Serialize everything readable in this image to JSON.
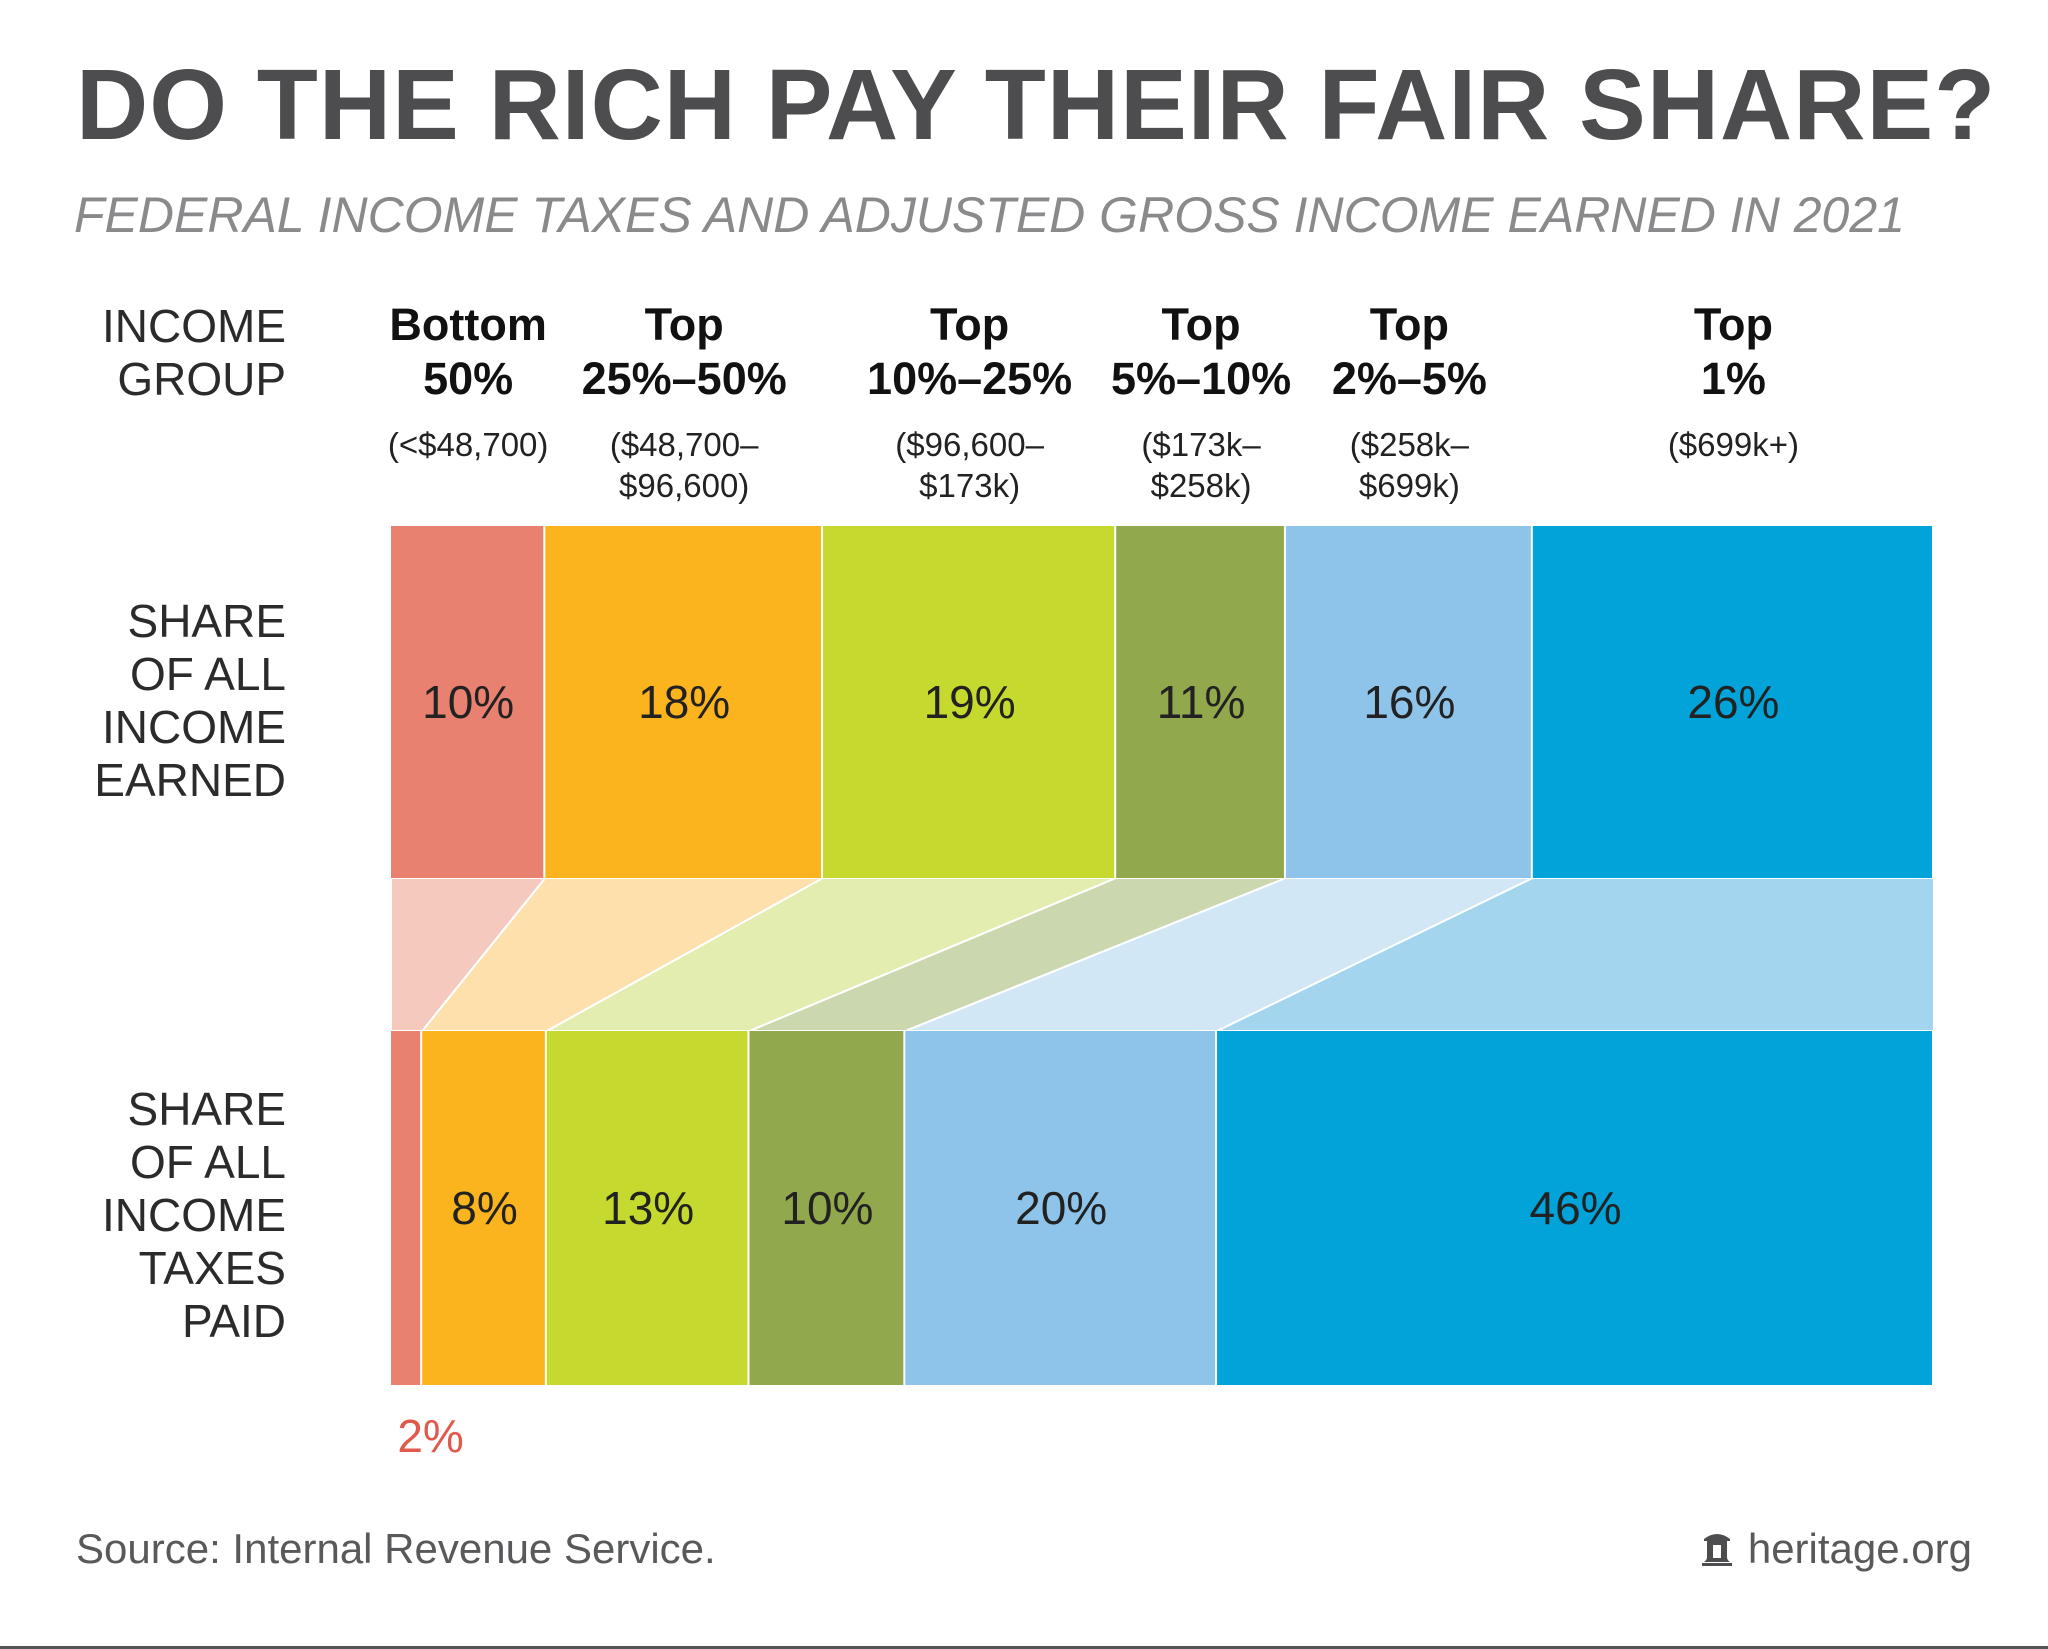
{
  "title": "DO THE RICH PAY THEIR FAIR SHARE?",
  "subtitle": "FEDERAL INCOME TAXES AND ADJUSTED GROSS INCOME EARNED IN 2021",
  "row_labels": {
    "group": [
      "INCOME",
      "GROUP"
    ],
    "income": [
      "SHARE",
      "OF ALL",
      "INCOME",
      "EARNED"
    ],
    "taxes": [
      "SHARE",
      "OF ALL",
      "INCOME",
      "TAXES",
      "PAID"
    ]
  },
  "groups": [
    {
      "name": [
        "Bottom",
        "50%"
      ],
      "range": [
        "(<$48,700)"
      ]
    },
    {
      "name": [
        "Top",
        "25%–50%"
      ],
      "range": [
        "($48,700–",
        "$96,600)"
      ]
    },
    {
      "name": [
        "Top",
        "10%–25%"
      ],
      "range": [
        "($96,600–",
        "$173k)"
      ]
    },
    {
      "name": [
        "Top",
        "5%–10%"
      ],
      "range": [
        "($173k–",
        "$258k)"
      ]
    },
    {
      "name": [
        "Top",
        "2%–5%"
      ],
      "range": [
        "($258k–",
        "$699k)"
      ]
    },
    {
      "name": [
        "Top",
        "1%"
      ],
      "range": [
        "($699k+)"
      ]
    }
  ],
  "chart_data": {
    "type": "bar",
    "orientation": "horizontal-stacked-100",
    "categories": [
      "Bottom 50%",
      "Top 25%–50%",
      "Top 10%–25%",
      "Top 5%–10%",
      "Top 2%–5%",
      "Top 1%"
    ],
    "series": [
      {
        "name": "SHARE OF ALL INCOME EARNED",
        "values": [
          10,
          18,
          19,
          11,
          16,
          26
        ],
        "labels": [
          "10%",
          "18%",
          "19%",
          "11%",
          "16%",
          "26%"
        ]
      },
      {
        "name": "SHARE OF ALL INCOME TAXES PAID",
        "values": [
          2,
          8,
          13,
          10,
          20,
          46
        ],
        "labels": [
          "2%",
          "8%",
          "13%",
          "10%",
          "20%",
          "46%"
        ]
      }
    ],
    "colors": [
      "#e98171",
      "#fbb41e",
      "#c6d92e",
      "#91a94c",
      "#8ec4ea",
      "#02a3d8"
    ],
    "connector_colors": [
      "#f5c9bd",
      "#fde0ab",
      "#e3edb0",
      "#cbd7ae",
      "#d1e7f6",
      "#a3d5ef"
    ],
    "text_color": "#222222",
    "small_label_color": "#e0594c"
  },
  "footer": {
    "source": "Source: Internal Revenue Service.",
    "brand": "heritage.org",
    "brand_icon": "bell-icon"
  }
}
